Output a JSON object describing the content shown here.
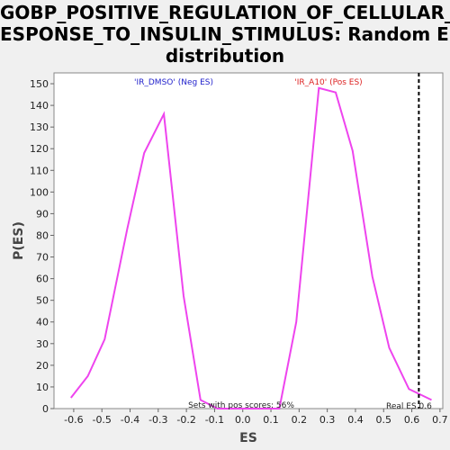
{
  "chart_data": {
    "type": "line",
    "title_lines": [
      "GOBP_POSITIVE_REGULATION_OF_CELLULAR_R",
      "ESPONSE_TO_INSULIN_STIMULUS: Random ES",
      "distribution"
    ],
    "xlabel": "ES",
    "ylabel": "P(ES)",
    "xlim": [
      -0.67,
      0.71
    ],
    "ylim": [
      0,
      155
    ],
    "xticks": [
      -0.6,
      -0.5,
      -0.4,
      -0.3,
      -0.2,
      -0.1,
      0.0,
      0.1,
      0.2,
      0.3,
      0.4,
      0.5,
      0.6,
      0.7
    ],
    "xtick_labels": [
      "-0.6",
      "-0.5",
      "-0.4",
      "-0.3",
      "-0.2",
      "-0.1",
      "0.0",
      "0.1",
      "0.2",
      "0.3",
      "0.4",
      "0.5",
      "0.6",
      "0.7"
    ],
    "yticks": [
      0,
      10,
      20,
      30,
      40,
      50,
      60,
      70,
      80,
      90,
      100,
      110,
      120,
      130,
      140,
      150
    ],
    "ytick_labels": [
      "0",
      "10",
      "20",
      "30",
      "40",
      "50",
      "60",
      "70",
      "80",
      "90",
      "100",
      "110",
      "120",
      "130",
      "140",
      "150"
    ],
    "series": [
      {
        "color": "#ee44ee",
        "points": [
          [
            -0.61,
            5
          ],
          [
            -0.55,
            15
          ],
          [
            -0.49,
            32
          ],
          [
            -0.41,
            83
          ],
          [
            -0.35,
            118
          ],
          [
            -0.28,
            136
          ],
          [
            -0.21,
            52
          ],
          [
            -0.15,
            4
          ],
          [
            -0.09,
            0
          ],
          [
            0.0,
            0
          ],
          [
            0.08,
            0
          ],
          [
            0.13,
            0
          ],
          [
            0.19,
            40
          ],
          [
            0.27,
            148
          ],
          [
            0.33,
            146
          ],
          [
            0.39,
            119
          ],
          [
            0.46,
            61
          ],
          [
            0.52,
            28
          ],
          [
            0.59,
            9
          ],
          [
            0.67,
            4
          ]
        ]
      }
    ],
    "real_es": 0.6,
    "annotations": {
      "neg": {
        "text": "'IR_DMSO' (Neg ES)",
        "color": "#2222cc"
      },
      "pos": {
        "text": "'IR_A10' (Pos ES)",
        "color": "#dd2222"
      },
      "pos_scores": {
        "text": "Sets with pos scores: 56%",
        "color": "#222222"
      },
      "real_es": {
        "text": "Real ES 0.6",
        "color": "#222222"
      }
    },
    "grid": false
  }
}
